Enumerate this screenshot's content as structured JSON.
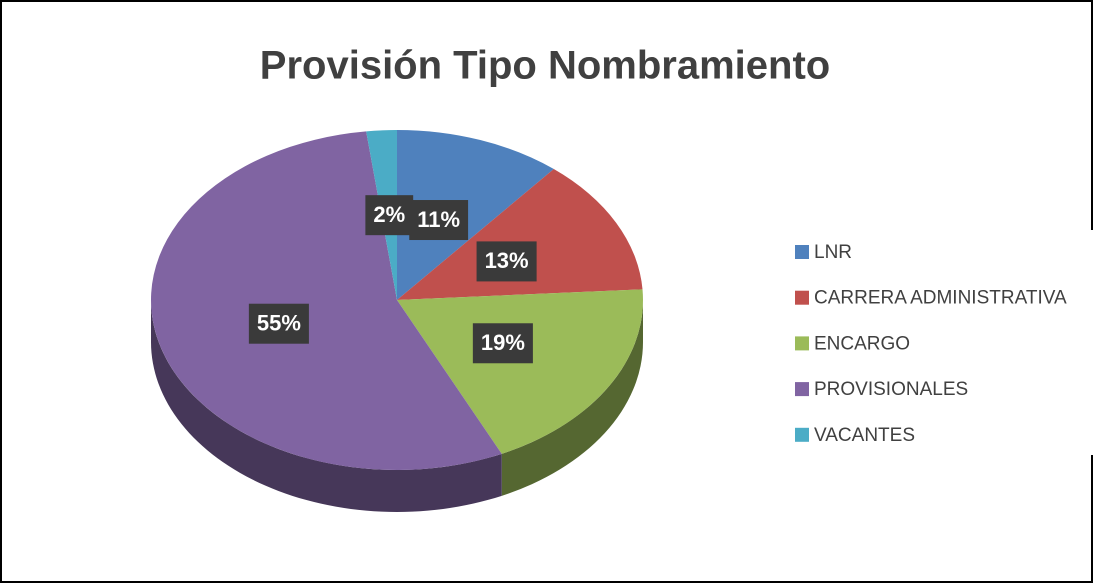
{
  "chart_data": {
    "type": "pie",
    "title": "Provisión Tipo Nombramiento",
    "categories": [
      "LNR",
      "CARRERA ADMINISTRATIVA",
      "ENCARGO",
      "PROVISIONALES",
      "VACANTES"
    ],
    "values": [
      11,
      13,
      19,
      55,
      2
    ],
    "value_labels": [
      "11%",
      "13%",
      "19%",
      "55%",
      "2%"
    ],
    "colors": [
      "#4f81bd",
      "#c0504d",
      "#9bbb59",
      "#8064a2",
      "#4bacc6"
    ],
    "legend": "right"
  }
}
